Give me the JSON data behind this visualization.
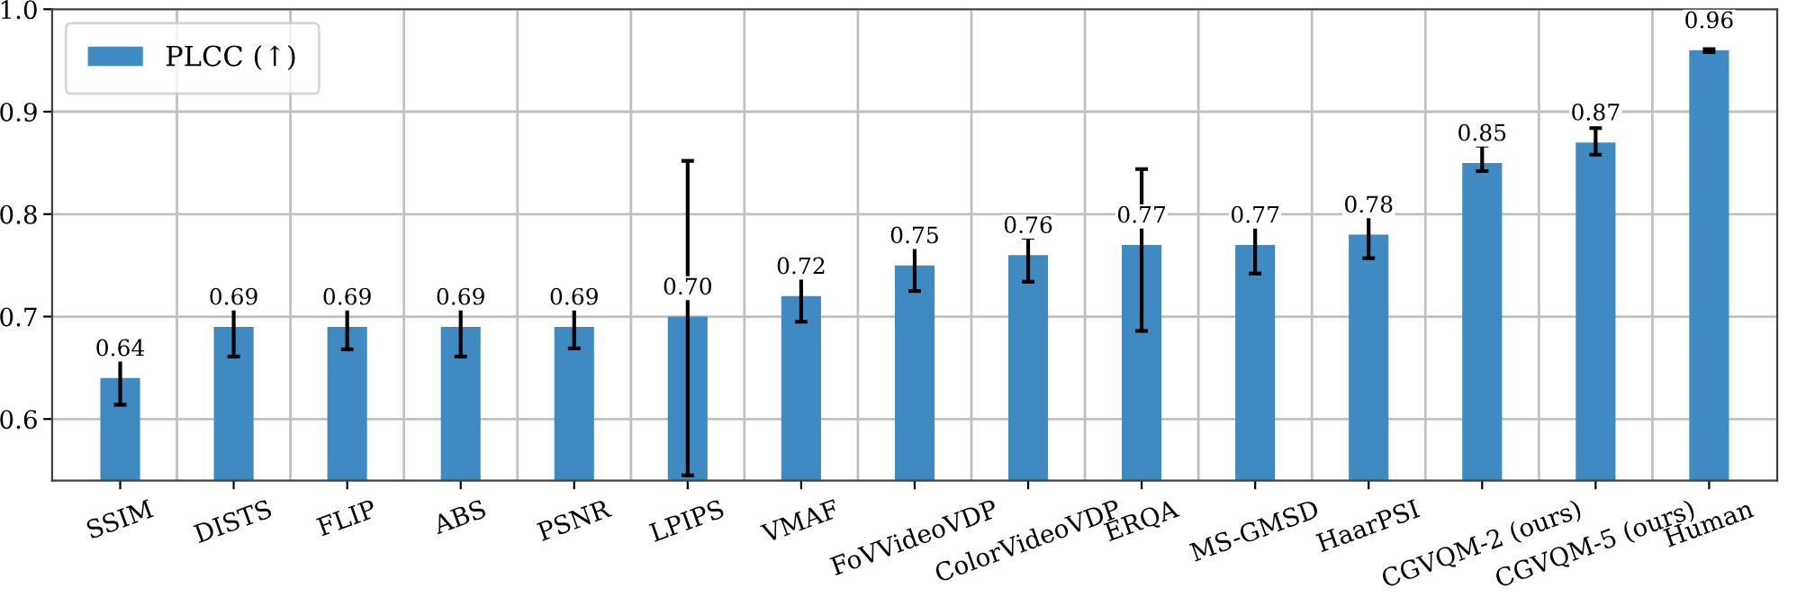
{
  "chart_data": {
    "type": "bar",
    "categories": [
      "SSIM",
      "DISTS",
      "FLIP",
      "ABS",
      "PSNR",
      "LPIPS",
      "VMAF",
      "FoVVideoVDP",
      "ColorVideoVDP",
      "ERQA",
      "MS-GMSD",
      "HaarPSI",
      "CGVQM-2 (ours)",
      "CGVQM-5 (ours)",
      "Human"
    ],
    "series": [
      {
        "name": "PLCC (↑)",
        "color": "#3f8bc1",
        "values": [
          0.64,
          0.69,
          0.69,
          0.69,
          0.69,
          0.7,
          0.72,
          0.75,
          0.76,
          0.77,
          0.77,
          0.78,
          0.85,
          0.87,
          0.96
        ],
        "errors": [
          [
            0.614,
            0.666
          ],
          [
            0.661,
            0.713
          ],
          [
            0.668,
            0.71
          ],
          [
            0.661,
            0.717
          ],
          [
            0.669,
            0.711
          ],
          [
            0.545,
            0.852
          ],
          [
            0.695,
            0.747
          ],
          [
            0.725,
            0.777
          ],
          [
            0.734,
            0.777
          ],
          [
            0.686,
            0.844
          ],
          [
            0.742,
            0.794
          ],
          [
            0.757,
            0.801
          ],
          [
            0.842,
            0.867
          ],
          [
            0.858,
            0.884
          ],
          [
            0.958,
            0.961
          ]
        ],
        "value_labels": [
          "0.64",
          "0.69",
          "0.69",
          "0.69",
          "0.69",
          "0.70",
          "0.72",
          "0.75",
          "0.76",
          "0.77",
          "0.77",
          "0.78",
          "0.85",
          "0.87",
          "0.96"
        ]
      }
    ],
    "ylim": [
      0.54,
      1.0
    ],
    "yticks": [
      0.6,
      0.7,
      0.8,
      0.9,
      {
        "value": 1.0,
        "label": "1.0"
      }
    ],
    "grid": true,
    "legend": "top left"
  }
}
